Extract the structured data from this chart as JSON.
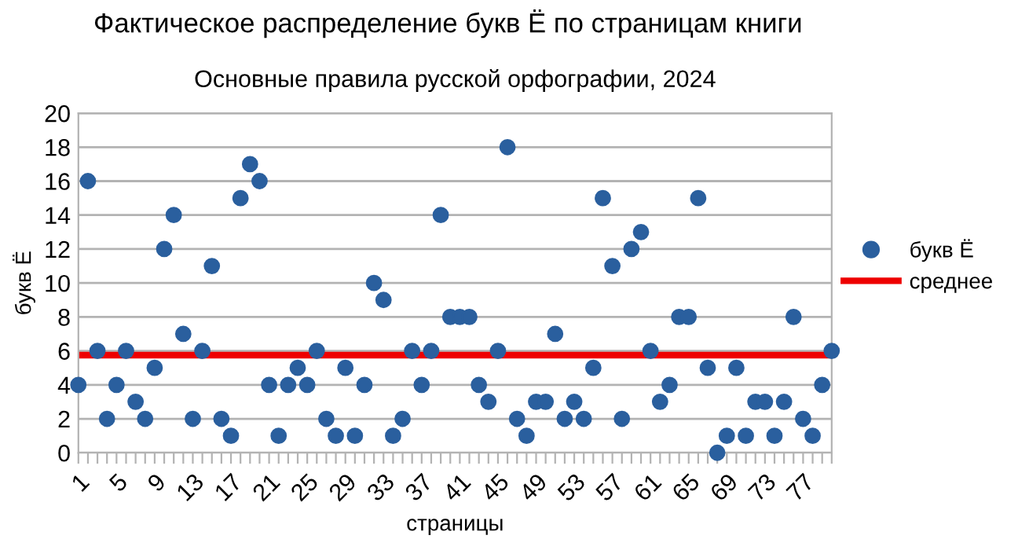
{
  "chart_data": {
    "type": "scatter",
    "title": "Фактическое распределение букв Ё по страницам книги",
    "subtitle": "Основные правила русской орфографии, 2024",
    "xlabel": "страницы",
    "ylabel": "букв Ё",
    "categories": [
      "1",
      null,
      null,
      null,
      "5",
      null,
      null,
      null,
      "9",
      null,
      null,
      null,
      "13",
      null,
      null,
      null,
      "17",
      null,
      null,
      null,
      "21",
      null,
      null,
      null,
      "25",
      null,
      null,
      null,
      "29",
      null,
      null,
      null,
      "33",
      null,
      null,
      null,
      "37",
      null,
      null,
      null,
      "41",
      null,
      null,
      null,
      "45",
      null,
      null,
      null,
      "49",
      null,
      null,
      null,
      "53",
      null,
      null,
      null,
      "57",
      null,
      null,
      null,
      "61",
      null,
      null,
      null,
      "65",
      null,
      null,
      null,
      "69",
      null,
      null,
      null,
      "73",
      null,
      null,
      null,
      "77",
      null,
      null,
      null
    ],
    "series": [
      {
        "name": "букв Ё",
        "color": "#2a5f9e",
        "values": [
          4,
          16,
          6,
          2,
          4,
          6,
          3,
          2,
          5,
          12,
          14,
          7,
          2,
          6,
          11,
          2,
          1,
          15,
          17,
          16,
          4,
          1,
          4,
          5,
          4,
          6,
          2,
          1,
          5,
          1,
          4,
          10,
          9,
          1,
          2,
          6,
          4,
          6,
          14,
          8,
          8,
          8,
          4,
          3,
          6,
          18,
          2,
          1,
          3,
          3,
          7,
          2,
          3,
          2,
          5,
          15,
          11,
          2,
          12,
          13,
          6,
          3,
          4,
          8,
          8,
          15,
          5,
          0,
          1,
          5,
          1,
          3,
          3,
          1,
          3,
          8,
          2,
          1,
          4,
          6
        ]
      }
    ],
    "ref_lines": [
      {
        "axis": "y",
        "value": 5.75,
        "label": "среднее",
        "color": "#ee0000"
      }
    ],
    "ylim": [
      0,
      20
    ],
    "yticks": [
      0,
      2,
      4,
      6,
      8,
      10,
      12,
      14,
      16,
      18,
      20
    ],
    "grid": "y",
    "legend": "right",
    "marker": "circle"
  }
}
